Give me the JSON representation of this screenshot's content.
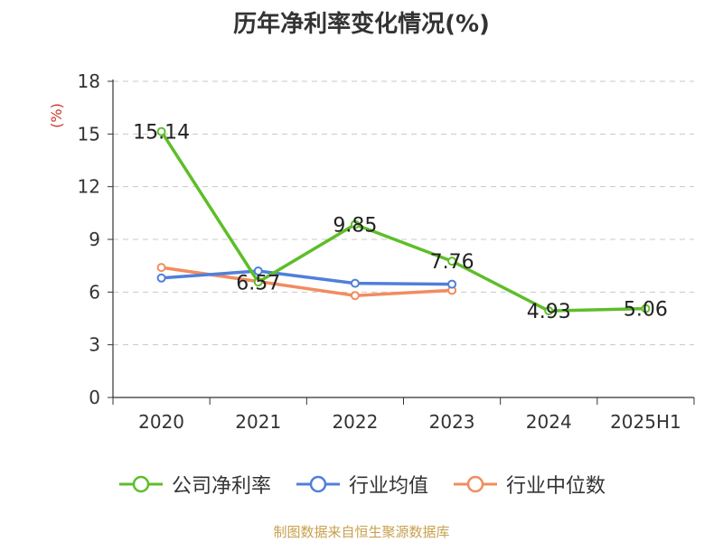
{
  "chart_data": {
    "type": "line",
    "title": "历年净利率变化情况(%)",
    "ylabel": "(%)",
    "categories": [
      "2020",
      "2021",
      "2022",
      "2023",
      "2024",
      "2025H1"
    ],
    "ylim": [
      0,
      18
    ],
    "yticks": [
      0,
      3,
      6,
      9,
      12,
      15,
      18
    ],
    "grid": "horizontal-dashed",
    "legend_position": "bottom",
    "series": [
      {
        "name": "公司净利率",
        "color": "#5dbe29",
        "values": [
          15.14,
          6.57,
          9.85,
          7.76,
          4.93,
          5.06
        ],
        "labels": [
          "15.14",
          "6.57",
          "9.85",
          "7.76",
          "4.93",
          "5.06"
        ]
      },
      {
        "name": "行业均值",
        "color": "#4f7fda",
        "values": [
          6.8,
          7.2,
          6.5,
          6.45,
          null,
          null
        ]
      },
      {
        "name": "行业中位数",
        "color": "#f28c5e",
        "values": [
          7.4,
          6.6,
          5.8,
          6.1,
          null,
          null
        ]
      }
    ]
  },
  "source": "制图数据来自恒生聚源数据库"
}
